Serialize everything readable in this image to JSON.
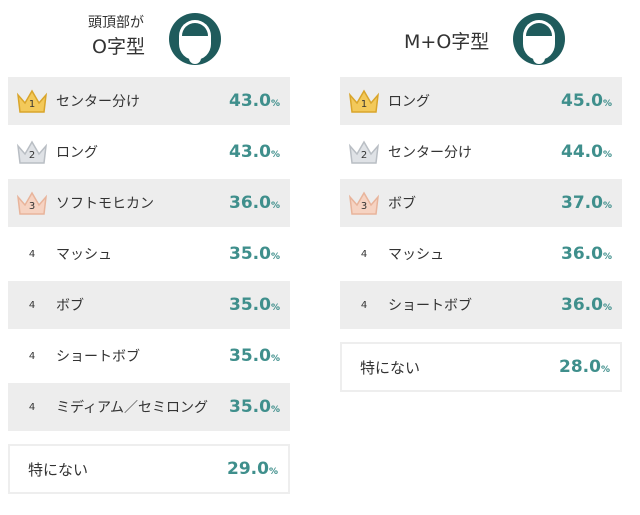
{
  "unit": "%",
  "panels": [
    {
      "title_small": "頭頂部が",
      "title": "O字型",
      "items": [
        {
          "rank": "1",
          "name": "センター分け",
          "value": "43.0"
        },
        {
          "rank": "2",
          "name": "ロング",
          "value": "43.0"
        },
        {
          "rank": "3",
          "name": "ソフトモヒカン",
          "value": "36.0"
        },
        {
          "rank": "4",
          "name": "マッシュ",
          "value": "35.0"
        },
        {
          "rank": "4",
          "name": "ボブ",
          "value": "35.0"
        },
        {
          "rank": "4",
          "name": "ショートボブ",
          "value": "35.0"
        },
        {
          "rank": "4",
          "name": "ミディアム／セミロング",
          "value": "35.0"
        }
      ],
      "none": {
        "name": "特にない",
        "value": "29.0"
      }
    },
    {
      "title": "M+O字型",
      "items": [
        {
          "rank": "1",
          "name": "ロング",
          "value": "45.0"
        },
        {
          "rank": "2",
          "name": "センター分け",
          "value": "44.0"
        },
        {
          "rank": "3",
          "name": "ボブ",
          "value": "37.0"
        },
        {
          "rank": "4",
          "name": "マッシュ",
          "value": "36.0"
        },
        {
          "rank": "4",
          "name": "ショートボブ",
          "value": "36.0"
        }
      ],
      "none": {
        "name": "特にない",
        "value": "28.0"
      }
    }
  ]
}
